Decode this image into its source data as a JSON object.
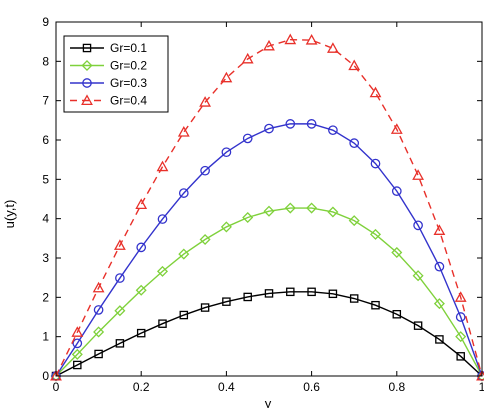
{
  "chart_data": {
    "type": "line",
    "title": "",
    "xlabel": "y",
    "ylabel": "u(y,t)",
    "xlim": [
      0,
      1
    ],
    "ylim": [
      0,
      9
    ],
    "grid": false,
    "legend_position": "top-left",
    "x_ticks": [
      0,
      0.2,
      0.4,
      0.6,
      0.8,
      1
    ],
    "x_tick_labels": [
      "0",
      "0.2",
      "0.4",
      "0.6",
      "0.8",
      "1"
    ],
    "y_ticks": [
      0,
      1,
      2,
      3,
      4,
      5,
      6,
      7,
      8,
      9
    ],
    "y_tick_labels": [
      "0",
      "1",
      "2",
      "3",
      "4",
      "5",
      "6",
      "7",
      "8",
      "9"
    ],
    "x": [
      0,
      0.05,
      0.1,
      0.15,
      0.2,
      0.25,
      0.3,
      0.35,
      0.4,
      0.45,
      0.5,
      0.55,
      0.6,
      0.65,
      0.7,
      0.75,
      0.8,
      0.85,
      0.9,
      0.95,
      1
    ],
    "series": [
      {
        "name": "Gr=0.1",
        "color": "#000000",
        "marker": "square",
        "dash": "solid",
        "values": [
          0,
          0.28,
          0.56,
          0.83,
          1.09,
          1.33,
          1.55,
          1.74,
          1.89,
          2.01,
          2.1,
          2.14,
          2.14,
          2.09,
          1.97,
          1.8,
          1.57,
          1.28,
          0.93,
          0.5,
          0
        ]
      },
      {
        "name": "Gr=0.2",
        "color": "#7fd13b",
        "marker": "diamond",
        "dash": "solid",
        "values": [
          0,
          0.55,
          1.12,
          1.66,
          2.18,
          2.66,
          3.1,
          3.47,
          3.79,
          4.03,
          4.19,
          4.27,
          4.27,
          4.17,
          3.95,
          3.6,
          3.14,
          2.55,
          1.84,
          1.0,
          0
        ]
      },
      {
        "name": "Gr=0.3",
        "color": "#3333cc",
        "marker": "circle",
        "dash": "solid",
        "values": [
          0,
          0.83,
          1.68,
          2.49,
          3.27,
          3.99,
          4.65,
          5.22,
          5.69,
          6.04,
          6.29,
          6.41,
          6.41,
          6.25,
          5.92,
          5.4,
          4.7,
          3.83,
          2.78,
          1.5,
          0
        ]
      },
      {
        "name": "Gr=0.4",
        "color": "#e8302a",
        "marker": "triangle",
        "dash": "dashed",
        "values": [
          0,
          1.11,
          2.24,
          3.32,
          4.36,
          5.32,
          6.2,
          6.96,
          7.58,
          8.06,
          8.39,
          8.55,
          8.54,
          8.33,
          7.89,
          7.2,
          6.27,
          5.1,
          3.7,
          2.0,
          0
        ]
      }
    ]
  }
}
